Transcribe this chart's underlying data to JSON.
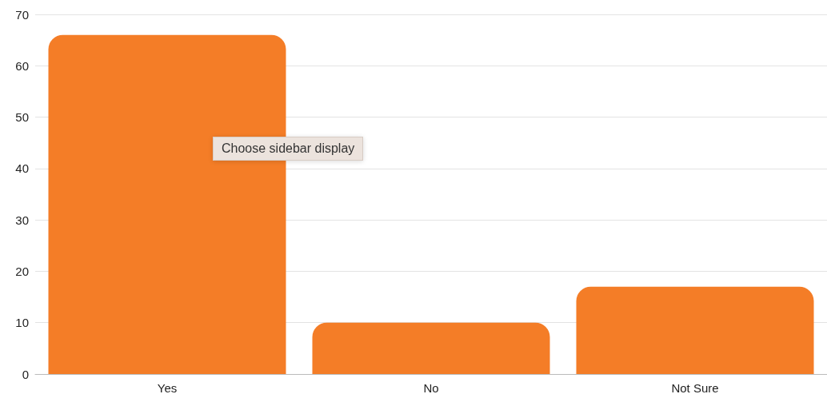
{
  "chart_data": {
    "type": "bar",
    "categories": [
      "Yes",
      "No",
      "Not Sure"
    ],
    "values": [
      66,
      10,
      17
    ],
    "color": "#f47d27",
    "ylim": [
      0,
      70
    ],
    "yticks": [
      0,
      10,
      20,
      30,
      40,
      50,
      60,
      70
    ],
    "grid": "y",
    "annotations": [
      "Choose sidebar display"
    ]
  }
}
